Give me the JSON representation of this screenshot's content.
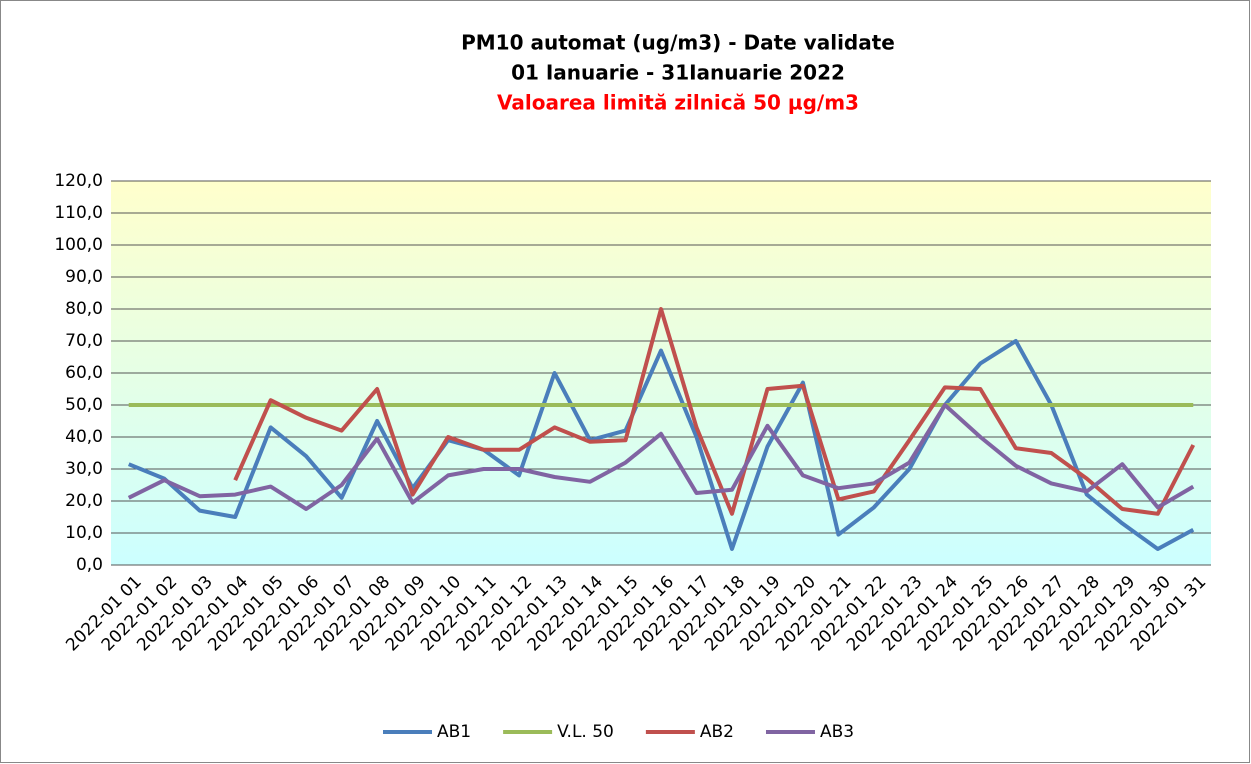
{
  "chart_data": {
    "type": "line",
    "title": "PM10 automat (ug/m3) - Date validate",
    "subtitle": "01 Ianuarie - 31Ianuarie 2022",
    "annotation": "Valoarea limită zilnică 50 µg/m3",
    "categories": [
      "2022-01 01",
      "2022-01 02",
      "2022-01 03",
      "2022-01 04",
      "2022-01 05",
      "2022-01 06",
      "2022-01 07",
      "2022-01 08",
      "2022-01 09",
      "2022-01 10",
      "2022-01 11",
      "2022-01 12",
      "2022-01 13",
      "2022-01 14",
      "2022-01 15",
      "2022-01 16",
      "2022-01 17",
      "2022-01 18",
      "2022-01 19",
      "2022-01 20",
      "2022-01 21",
      "2022-01 22",
      "2022-01 23",
      "2022-01 24",
      "2022-01 25",
      "2022-01 26",
      "2022-01 27",
      "2022-01 28",
      "2022-01 29",
      "2022-01 30",
      "2022-01 31"
    ],
    "series": [
      {
        "name": "AB1",
        "color": "#4a7ebb",
        "values": [
          31.5,
          27,
          17,
          15,
          43,
          34,
          21,
          45,
          24,
          39,
          36,
          28,
          60,
          39,
          42,
          67,
          40,
          5,
          37,
          57,
          9.5,
          18,
          30,
          50,
          63,
          70,
          50,
          22,
          13,
          5,
          11
        ]
      },
      {
        "name": "V.L. 50",
        "color": "#9bbb59",
        "values": [
          50,
          50,
          50,
          50,
          50,
          50,
          50,
          50,
          50,
          50,
          50,
          50,
          50,
          50,
          50,
          50,
          50,
          50,
          50,
          50,
          50,
          50,
          50,
          50,
          50,
          50,
          50,
          50,
          50,
          50,
          50
        ]
      },
      {
        "name": "AB2",
        "color": "#c0504d",
        "values": [
          null,
          null,
          null,
          26.5,
          51.5,
          46,
          42,
          55,
          22,
          40,
          36,
          36,
          43,
          38.5,
          39,
          80,
          43,
          16,
          55,
          56,
          20.5,
          23,
          39,
          55.5,
          55,
          36.5,
          35,
          27,
          17.5,
          16,
          37.5
        ]
      },
      {
        "name": "AB3",
        "color": "#8064a2",
        "values": [
          21,
          26.5,
          21.5,
          22,
          24.5,
          17.5,
          25,
          39.5,
          19.5,
          28,
          30,
          30,
          27.5,
          26,
          32,
          41,
          22.5,
          23.5,
          43.5,
          28,
          24,
          25.5,
          32,
          50,
          40,
          31,
          25.5,
          23,
          31.5,
          18,
          24.5
        ]
      }
    ],
    "ylim": [
      0,
      120
    ],
    "yticks": [
      {
        "value": 0,
        "label": "0,0"
      },
      {
        "value": 10,
        "label": "10,0"
      },
      {
        "value": 20,
        "label": "20,0"
      },
      {
        "value": 30,
        "label": "30,0"
      },
      {
        "value": 40,
        "label": "40,0"
      },
      {
        "value": 50,
        "label": "50,0"
      },
      {
        "value": 60,
        "label": "60,0"
      },
      {
        "value": 70,
        "label": "70,0"
      },
      {
        "value": 80,
        "label": "80,0"
      },
      {
        "value": 90,
        "label": "90,0"
      },
      {
        "value": 100,
        "label": "100,0"
      },
      {
        "value": 110,
        "label": "110,0"
      },
      {
        "value": 120,
        "label": "120,0"
      }
    ],
    "grid": true,
    "legend": "bottom"
  }
}
